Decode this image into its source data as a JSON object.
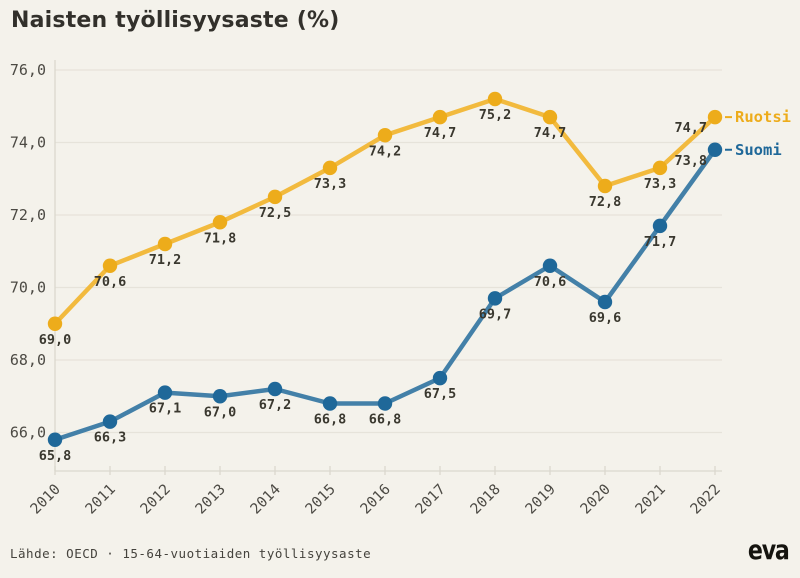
{
  "title": "Naisten työllisyysaste (%)",
  "footer": {
    "source": "Lähde: OECD · 15-64-vuotiaiden työllisyysaste",
    "logo": "eva"
  },
  "colors": {
    "background": "#F4F2EB",
    "grid": "#E6E3DA",
    "axis": "#DBD8CE",
    "tick_label": "#4C4A44",
    "data_label": "#3A382F",
    "title": "#32302B"
  },
  "chart_data": {
    "type": "line",
    "title": "Naisten työllisyysaste (%)",
    "xlabel": "",
    "ylabel": "",
    "x_labels": [
      "2010",
      "2011",
      "2012",
      "2013",
      "2014",
      "2015",
      "2016",
      "2017",
      "2018",
      "2019",
      "2020",
      "2021",
      "2022"
    ],
    "ylim": [
      65.0,
      76.2
    ],
    "grid": true,
    "legend_position": "right-of-last-point",
    "y_ticks": [
      {
        "value": 66,
        "label": "66,0"
      },
      {
        "value": 68,
        "label": "68,0"
      },
      {
        "value": 70,
        "label": "70,0"
      },
      {
        "value": 72,
        "label": "72,0"
      },
      {
        "value": 74,
        "label": "74,0"
      },
      {
        "value": 76,
        "label": "76,0"
      }
    ],
    "series": [
      {
        "name": "Ruotsi",
        "line_color": "#F2BA3E",
        "point_color": "#EDAC1B",
        "values": [
          69.0,
          70.6,
          71.2,
          71.8,
          72.5,
          73.3,
          74.2,
          74.7,
          75.2,
          74.7,
          72.8,
          73.3,
          74.7
        ],
        "point_labels": [
          "69,0",
          "70,6",
          "71,2",
          "71,8",
          "72,5",
          "73,3",
          "74,2",
          "74,7",
          "75,2",
          "74,7",
          "72,8",
          "73,3",
          "74,7"
        ]
      },
      {
        "name": "Suomi",
        "line_color": "#4380A8",
        "point_color": "#1F6899",
        "values": [
          65.8,
          66.3,
          67.1,
          67.0,
          67.2,
          66.8,
          66.8,
          67.5,
          69.7,
          70.6,
          69.6,
          71.7,
          73.8
        ],
        "point_labels": [
          "65,8",
          "66,3",
          "67,1",
          "67,0",
          "67,2",
          "66,8",
          "66,8",
          "67,5",
          "69,7",
          "70,6",
          "69,6",
          "71,7",
          "73,8"
        ]
      }
    ]
  }
}
